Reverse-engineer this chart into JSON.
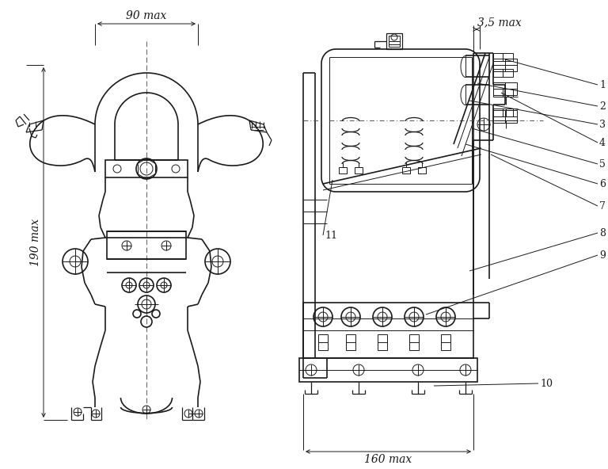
{
  "background_color": "#ffffff",
  "line_color": "#1a1a1a",
  "label_90max": "90 max",
  "label_190max": "190 max",
  "label_160max": "160 max",
  "label_35max": "3,5 max",
  "font_size_dim": 10,
  "font_size_label": 9,
  "lw_main": 1.2,
  "lw_thin": 0.7,
  "lw_med": 0.9
}
